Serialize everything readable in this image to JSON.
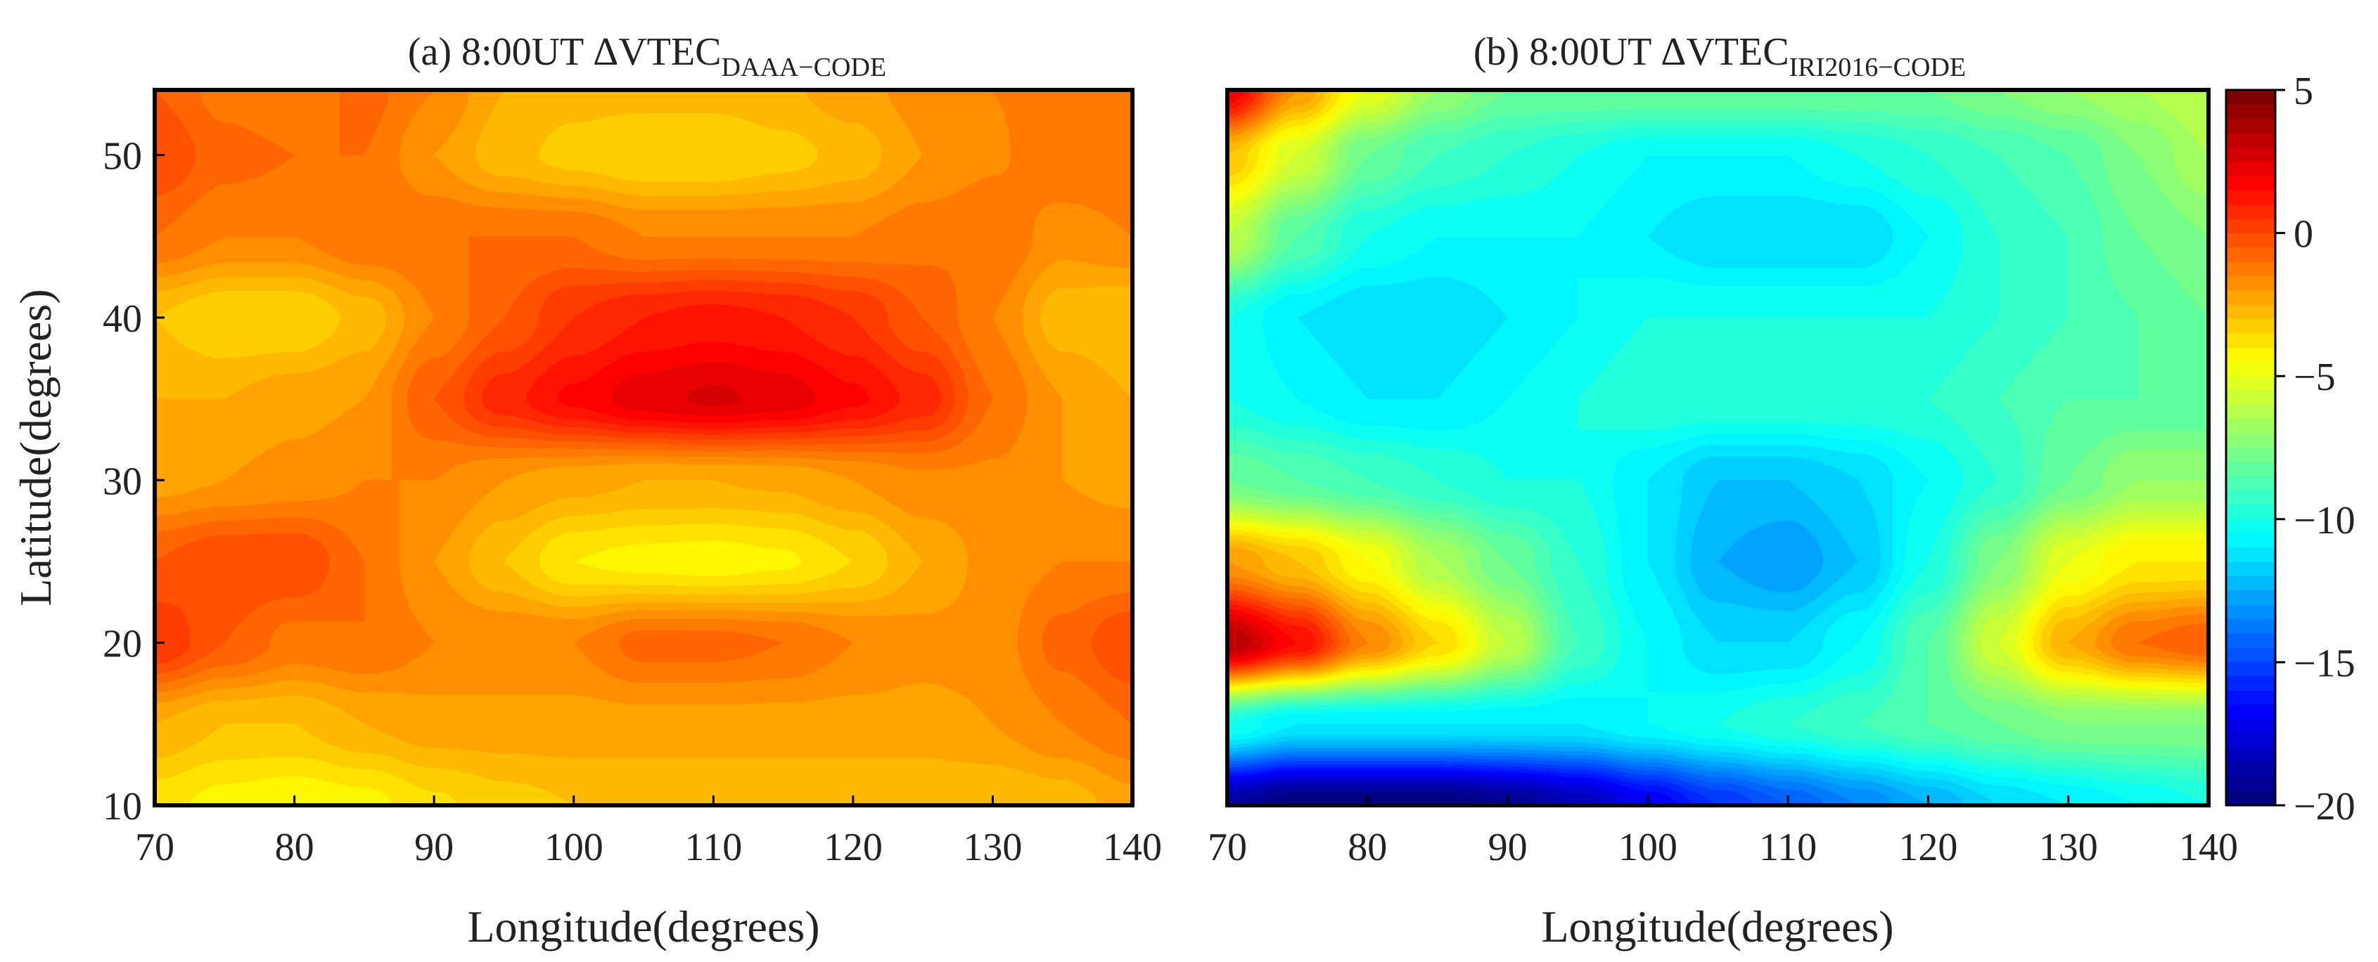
{
  "chart_data": [
    {
      "panel": "a",
      "type": "heatmap",
      "title_main": "(a) 8:00UT ΔVTEC",
      "title_sub": "DAAA−CODE",
      "xlabel": "Longitude(degrees)",
      "ylabel": "Latitude(degrees)",
      "xlim": [
        70,
        140
      ],
      "ylim": [
        10,
        54
      ],
      "xticks": [
        70,
        80,
        90,
        100,
        110,
        120,
        130,
        140
      ],
      "xtick_labels": [
        "70",
        "80",
        "90",
        "100",
        "110",
        "120",
        "130",
        "140"
      ],
      "yticks": [
        10,
        20,
        30,
        40,
        50
      ],
      "ytick_labels": [
        "10",
        "20",
        "30",
        "40",
        "50"
      ],
      "x": [
        70,
        75,
        80,
        85,
        90,
        95,
        100,
        105,
        110,
        115,
        120,
        125,
        130,
        135,
        140
      ],
      "y": [
        10,
        15,
        20,
        25,
        30,
        35,
        40,
        45,
        50,
        54
      ],
      "z": [
        [
          -3.8,
          -4.2,
          -4.4,
          -4.2,
          -3.6,
          -3.2,
          -3.0,
          -3.0,
          -3.0,
          -3.0,
          -3.0,
          -3.0,
          -3.0,
          -2.8,
          -2.2
        ],
        [
          -2.5,
          -3.0,
          -3.0,
          -2.5,
          -2.2,
          -2.2,
          -2.2,
          -2.2,
          -2.2,
          -2.2,
          -2.2,
          -2.2,
          -2.0,
          -1.5,
          -1.0
        ],
        [
          0.5,
          -0.5,
          -1.2,
          -1.0,
          -1.5,
          -1.5,
          -1.5,
          -0.8,
          -0.8,
          -1.0,
          -1.5,
          -1.8,
          -1.8,
          -0.8,
          0.0
        ],
        [
          -0.5,
          0.0,
          0.0,
          -1.0,
          -2.0,
          -3.0,
          -4.0,
          -4.2,
          -4.3,
          -4.1,
          -3.5,
          -2.5,
          -1.8,
          -1.5,
          -1.5
        ],
        [
          -2.2,
          -2.0,
          -1.8,
          -1.5,
          -1.5,
          -2.0,
          -2.3,
          -2.5,
          -2.5,
          -2.4,
          -2.0,
          -1.6,
          -1.6,
          -2.0,
          -2.2
        ],
        [
          -2.5,
          -2.5,
          -2.2,
          -2.0,
          -0.5,
          0.8,
          1.6,
          2.3,
          2.6,
          2.3,
          1.6,
          0.8,
          -1.0,
          -2.0,
          -2.5
        ],
        [
          -3.0,
          -3.5,
          -3.5,
          -2.8,
          -1.5,
          -0.5,
          0.5,
          1.0,
          1.2,
          1.0,
          0.5,
          -0.5,
          -1.5,
          -2.8,
          -3.0
        ],
        [
          -1.0,
          -1.5,
          -1.5,
          -1.0,
          -1.0,
          -1.0,
          -1.0,
          -1.5,
          -1.5,
          -1.5,
          -1.5,
          -1.2,
          -1.0,
          -1.8,
          -1.5
        ],
        [
          0.0,
          -0.8,
          -1.0,
          -1.0,
          -2.0,
          -2.8,
          -3.2,
          -3.5,
          -3.5,
          -3.2,
          -2.8,
          -2.0,
          -1.6,
          -1.0,
          -1.0
        ],
        [
          -0.5,
          -1.2,
          -1.5,
          -0.8,
          -1.5,
          -2.5,
          -2.8,
          -2.8,
          -2.8,
          -2.6,
          -2.2,
          -1.8,
          -1.5,
          -1.2,
          -1.0
        ]
      ]
    },
    {
      "panel": "b",
      "type": "heatmap",
      "title_main": "(b) 8:00UT ΔVTEC",
      "title_sub": "IRI2016−CODE",
      "xlabel": "Longitude(degrees)",
      "xlim": [
        70,
        140
      ],
      "ylim": [
        10,
        54
      ],
      "xticks": [
        70,
        80,
        90,
        100,
        110,
        120,
        130,
        140
      ],
      "xtick_labels": [
        "70",
        "80",
        "90",
        "100",
        "110",
        "120",
        "130",
        "140"
      ],
      "x": [
        70,
        75,
        80,
        85,
        90,
        95,
        100,
        105,
        110,
        115,
        120,
        125,
        130,
        135,
        140
      ],
      "y": [
        10,
        15,
        20,
        25,
        30,
        35,
        40,
        45,
        50,
        54
      ],
      "z": [
        [
          -19.0,
          -20.0,
          -20.0,
          -20.0,
          -19.5,
          -18.5,
          -17.0,
          -15.5,
          -14.5,
          -13.5,
          -12.5,
          -11.5,
          -11.0,
          -10.5,
          -10.0
        ],
        [
          -10.0,
          -11.0,
          -11.0,
          -11.0,
          -11.0,
          -11.0,
          -10.5,
          -10.0,
          -9.5,
          -9.0,
          -8.5,
          -8.0,
          -7.5,
          -7.5,
          -7.5
        ],
        [
          3.5,
          1.5,
          -1.5,
          -3.5,
          -6.0,
          -9.0,
          -10.5,
          -11.5,
          -11.5,
          -10.5,
          -8.5,
          -5.5,
          -2.5,
          -1.0,
          -0.5
        ],
        [
          -2.0,
          -3.0,
          -4.5,
          -6.5,
          -8.0,
          -9.5,
          -11.0,
          -12.5,
          -13.0,
          -12.0,
          -10.0,
          -7.5,
          -5.0,
          -4.0,
          -4.0
        ],
        [
          -8.0,
          -8.5,
          -9.0,
          -9.5,
          -10.0,
          -10.0,
          -11.0,
          -12.0,
          -12.0,
          -11.5,
          -10.5,
          -9.5,
          -8.0,
          -7.0,
          -7.0
        ],
        [
          -10.0,
          -10.5,
          -11.0,
          -11.0,
          -10.5,
          -10.0,
          -9.5,
          -9.5,
          -9.5,
          -9.5,
          -9.5,
          -9.0,
          -8.5,
          -8.5,
          -8.5
        ],
        [
          -10.0,
          -11.0,
          -11.5,
          -11.5,
          -11.0,
          -10.5,
          -10.0,
          -10.0,
          -10.0,
          -10.0,
          -10.0,
          -9.5,
          -9.0,
          -8.5,
          -8.0
        ],
        [
          -6.0,
          -8.5,
          -10.0,
          -10.5,
          -10.5,
          -10.5,
          -11.0,
          -11.5,
          -11.5,
          -11.5,
          -10.5,
          -9.5,
          -9.0,
          -8.0,
          -7.5
        ],
        [
          -3.0,
          -5.5,
          -8.0,
          -9.0,
          -9.5,
          -10.0,
          -10.5,
          -10.5,
          -10.5,
          -10.0,
          -9.5,
          -9.0,
          -8.5,
          -7.5,
          -6.5
        ],
        [
          2.0,
          -2.0,
          -5.0,
          -7.0,
          -8.0,
          -8.0,
          -8.0,
          -8.0,
          -8.0,
          -8.0,
          -8.0,
          -7.5,
          -7.0,
          -6.5,
          -6.0
        ]
      ]
    }
  ],
  "colorbar": {
    "min": -20,
    "max": 5,
    "ticks": [
      5,
      0,
      -5,
      -10,
      -15,
      -20
    ],
    "tick_labels": [
      "5",
      "0",
      "−5",
      "−10",
      "−15",
      "−20"
    ]
  }
}
